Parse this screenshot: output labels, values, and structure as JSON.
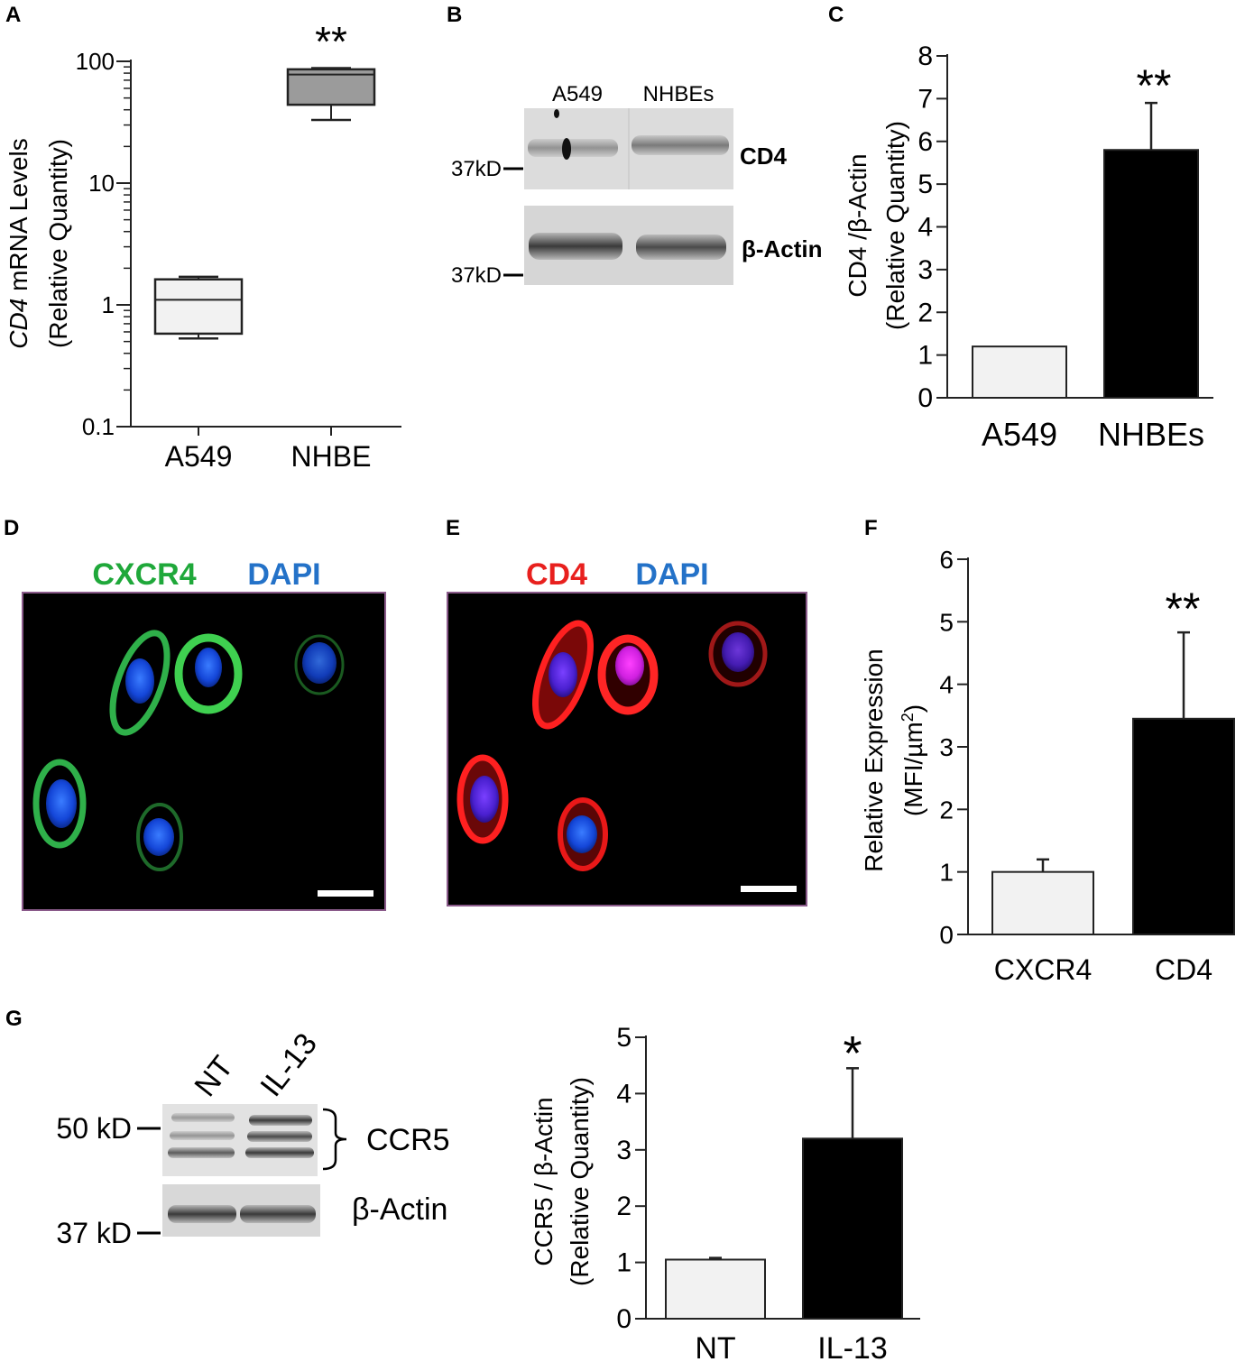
{
  "panels": {
    "A": {
      "letter": "A",
      "ylabel_italic": "CD4",
      "ylabel_rest": " mRNA Levels",
      "ylabel_line2": "(Relative Quantity)",
      "significance": "**",
      "ticks": [
        "100",
        "10",
        "1",
        "0.1"
      ]
    },
    "B": {
      "letter": "B",
      "lanes": [
        "A549",
        "NHBEs"
      ],
      "markers": [
        "37kD",
        "37kD"
      ],
      "bands": [
        "CD4",
        "β-Actin"
      ]
    },
    "C": {
      "letter": "C",
      "ylabel_line1": "CD4 /β-Actin",
      "ylabel_line2": "(Relative Quantity)",
      "significance": "**"
    },
    "D": {
      "letter": "D",
      "stain1": "CXCR4",
      "stain2": "DAPI",
      "colors": {
        "stain1": "#1fa83a",
        "stain2": "#2472c8"
      }
    },
    "E": {
      "letter": "E",
      "stain1": "CD4",
      "stain2": "DAPI",
      "colors": {
        "stain1": "#e8201e",
        "stain2": "#2472c8"
      }
    },
    "F": {
      "letter": "F",
      "ylabel_line1": "Relative Expression",
      "ylabel_line2": "(MFI/µm",
      "ylabel_sup": "2",
      "ylabel_close": ")",
      "significance": "**"
    },
    "G": {
      "letter": "G",
      "lanes": [
        "NT",
        "IL-13"
      ],
      "markers": [
        "50 kD",
        "37 kD"
      ],
      "bands": [
        "CCR5",
        "β-Actin"
      ],
      "ylabel_line1": "CCR5 / β-Actin",
      "ylabel_line2": "(Relative Quantity)",
      "significance": "*"
    }
  },
  "chart_data": [
    {
      "id": "A",
      "type": "box",
      "categories": [
        "A549",
        "NHBE"
      ],
      "yscale": "log",
      "ylim": [
        0.1,
        100
      ],
      "boxes": [
        {
          "category": "A549",
          "min": 0.53,
          "q1": 0.58,
          "median": 1.1,
          "q3": 1.62,
          "max": 1.7,
          "fill": "#f2f2f2"
        },
        {
          "category": "NHBE",
          "min": 33,
          "q1": 44,
          "median": 78,
          "q3": 86,
          "max": 88,
          "fill": "#9b9b9b"
        }
      ]
    },
    {
      "id": "C",
      "type": "bar",
      "categories": [
        "A549",
        "NHBEs"
      ],
      "values": [
        1.2,
        5.8
      ],
      "errors": [
        0,
        1.1
      ],
      "yticks": [
        "0",
        "1",
        "2",
        "3",
        "4",
        "5",
        "6",
        "7",
        "8"
      ],
      "ylim": [
        0,
        8
      ],
      "colors": [
        "#f2f2f2",
        "#000000"
      ]
    },
    {
      "id": "F",
      "type": "bar",
      "categories": [
        "CXCR4",
        "CD4"
      ],
      "values": [
        1.0,
        3.45
      ],
      "errors": [
        0.2,
        1.38
      ],
      "yticks": [
        "0",
        "1",
        "2",
        "3",
        "4",
        "5",
        "6"
      ],
      "ylim": [
        0,
        6
      ],
      "colors": [
        "#f2f2f2",
        "#000000"
      ]
    },
    {
      "id": "G",
      "type": "bar",
      "categories": [
        "NT",
        "IL-13"
      ],
      "values": [
        1.05,
        3.2
      ],
      "errors": [
        0.03,
        1.25
      ],
      "yticks": [
        "0",
        "1",
        "2",
        "3",
        "4",
        "5"
      ],
      "ylim": [
        0,
        5
      ],
      "colors": [
        "#f2f2f2",
        "#000000"
      ]
    }
  ]
}
